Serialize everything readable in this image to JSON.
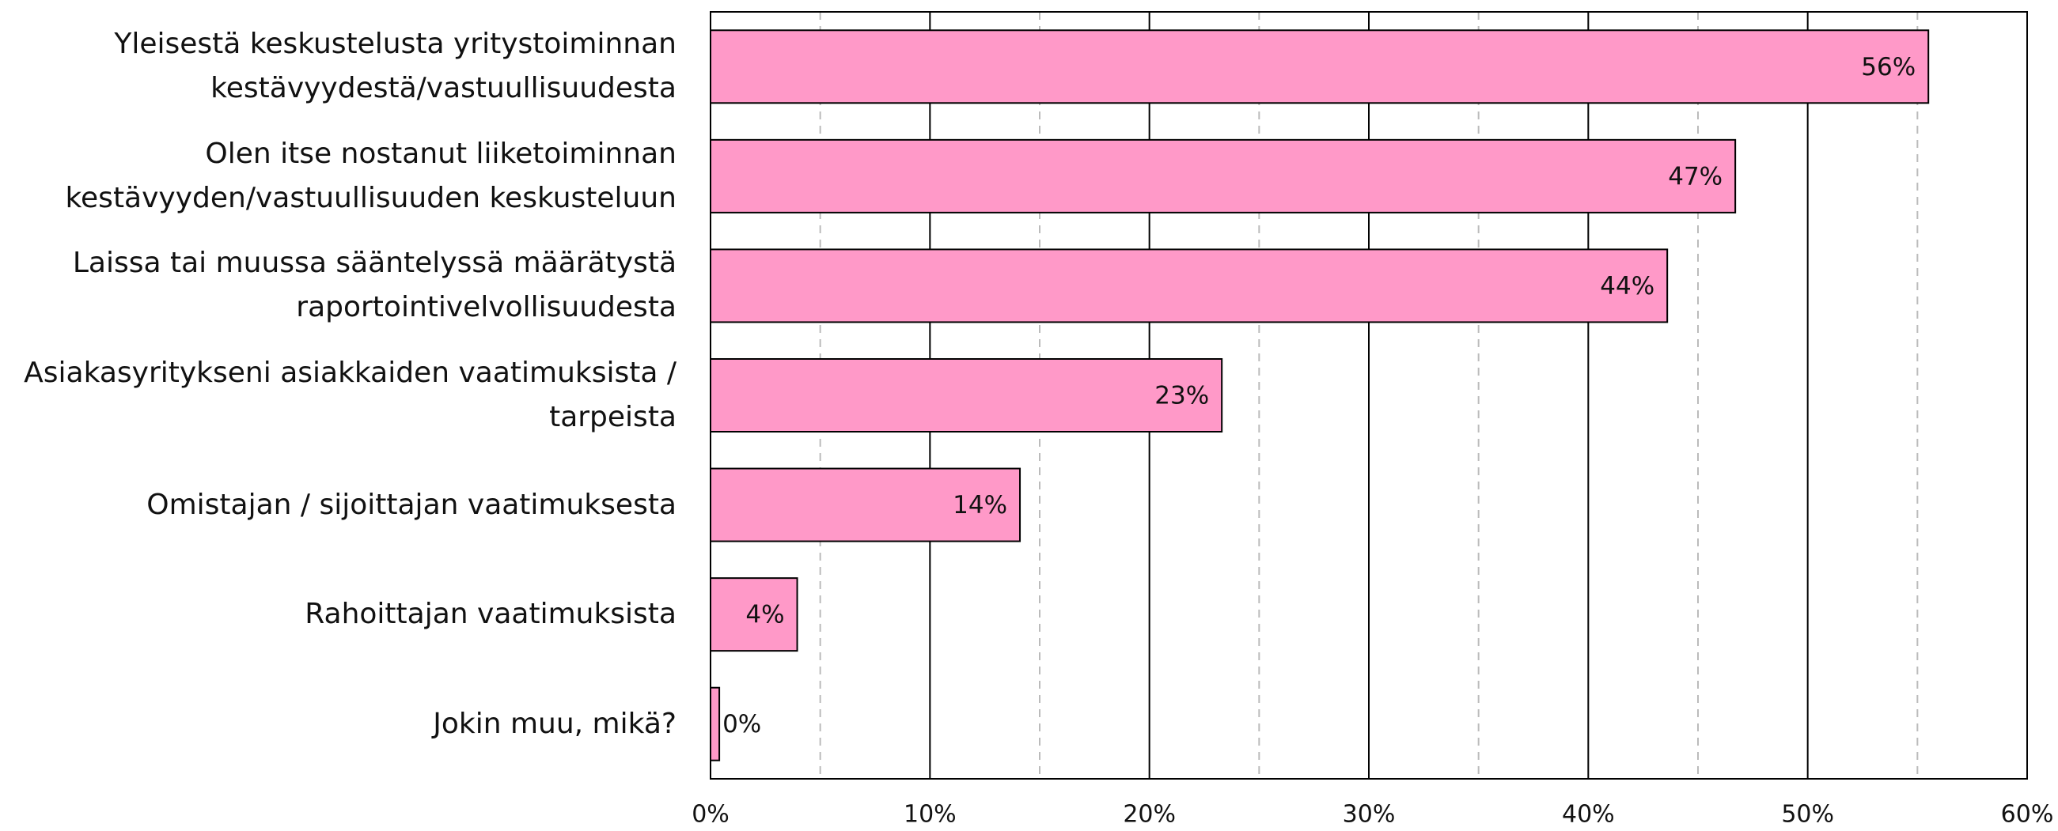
{
  "chart_data": {
    "type": "bar",
    "orientation": "horizontal",
    "categories": [
      "Yleisestä keskustelusta yritystoiminnan\nkestävyydestä/vastuullisuudesta",
      "Olen itse nostanut liiketoiminnan\nkestävyyden/vastuullisuuden keskusteluun",
      "Laissa tai muussa sääntelyssä määrätystä\nraportointivelvollisuudesta",
      "Asiakasyritykseni asiakkaiden vaatimuksista /\ntarpeista",
      "Omistajan / sijoittajan vaatimuksesta",
      "Rahoittajan vaatimuksista",
      "Jokin muu, mikä?"
    ],
    "values": [
      55.5,
      46.7,
      43.6,
      23.3,
      14.1,
      3.95,
      0.4
    ],
    "value_labels": [
      "56%",
      "47%",
      "44%",
      "23%",
      "14%",
      "4%",
      "0%"
    ],
    "color": "#ff99c8",
    "xlim": [
      0,
      60
    ],
    "xticks": [
      {
        "value": 0,
        "label": "0%"
      },
      {
        "value": 10,
        "label": "10%"
      },
      {
        "value": 20,
        "label": "20%"
      },
      {
        "value": 30,
        "label": "30%"
      },
      {
        "value": 40,
        "label": "40%"
      },
      {
        "value": 50,
        "label": "50%"
      },
      {
        "value": 60,
        "label": "60%"
      }
    ],
    "minor_xticks": [
      5,
      15,
      25,
      35,
      45,
      55
    ],
    "grid": true
  }
}
